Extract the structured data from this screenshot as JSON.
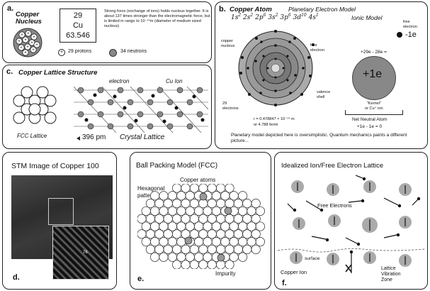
{
  "panel_a": {
    "label": "a.",
    "title": "Copper\nNucleus",
    "atomic_number": "29",
    "symbol": "Cu",
    "atomic_mass": "63.546",
    "description": "Strong force (exchange of ions) holds nucleus together.  It is about 137 times stronger than the electromagnetic force, but is limited in range to 10⁻¹⁴m (diameter of medium sized nucleus)",
    "legend_protons": "29 protons",
    "legend_neutrons": "34 neutrons"
  },
  "panel_b": {
    "label": "b.",
    "title": "Copper Atom",
    "subtitle": "Planetary Electron Model",
    "config_parts": [
      {
        "base": "1s",
        "sup": "2"
      },
      {
        "base": "2s",
        "sup": "2"
      },
      {
        "base": "2p",
        "sup": "6"
      },
      {
        "base": "3s",
        "sup": "2"
      },
      {
        "base": "3p",
        "sup": "6"
      },
      {
        "base": "3d",
        "sup": "10"
      },
      {
        "base": "4s",
        "sup": "1"
      }
    ],
    "label_nucleus": "copper\nnucleus",
    "label_free_electron": "free\nelectron",
    "label_valence": "valence\nshell",
    "label_electrons": "29\nelectrons",
    "radius_text": "r = 0.478847 × 10⁻¹⁴ m",
    "radius_text2": "or 4.788 fermi",
    "ionic_title": "Ionic Model",
    "ion_free_electron": "free\nelectron",
    "ion_charge": "-1e",
    "ion_core_charge": "+29e - 28e =",
    "ion_core_label": "+1e",
    "kernel_label": "\"Kernel\"\nor Cu⁺ ion",
    "net_neutral": "Net Neutral Atom",
    "net_equation": "+1e - 1e = 0",
    "footnote": "Planetary model depicted here is oversimplistic.  Quantum mechanics paints a different picture..."
  },
  "panel_c": {
    "label": "c.",
    "title": "Copper Lattice Structure",
    "label_electron": "electron",
    "label_cu_ion": "Cu Ion",
    "label_fcc": "FCC Lattice",
    "spacing": "396 pm",
    "label_crystal": "Crystal Lattice"
  },
  "panel_d": {
    "label": "d.",
    "title": "STM Image of Copper 100",
    "inset_value": "76"
  },
  "panel_e": {
    "label": "e.",
    "title": "Ball Packing Model (FCC)",
    "label_copper_atoms": "Copper atoms",
    "label_hexagonal": "Hexagonal\npattern",
    "label_impurity": "Impurity"
  },
  "panel_f": {
    "label": "f.",
    "title": "Idealized Ion/Free Electron Lattice",
    "label_free_electrons": "Free Electrons",
    "label_surface": "surface",
    "label_copper_ion": "Copper Ion",
    "label_lattice": "Lattice\nVibration\nZone"
  }
}
